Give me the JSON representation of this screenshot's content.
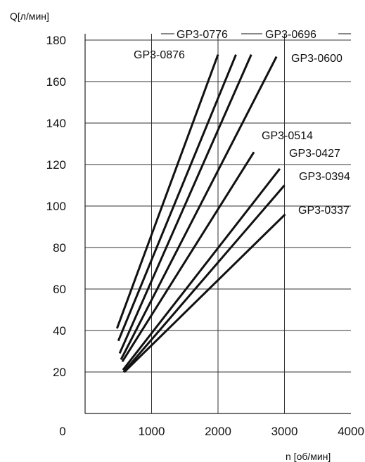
{
  "chart_data": {
    "type": "line",
    "xlabel": "n [об/мин]",
    "ylabel": "Q[л/мин]",
    "xlim": [
      0,
      4000
    ],
    "ylim": [
      0,
      190
    ],
    "grid": true,
    "x_ticks": [
      "0",
      "1000",
      "2000",
      "3000",
      "4000"
    ],
    "y_ticks": [
      "20",
      "40",
      "60",
      "80",
      "100",
      "120",
      "140",
      "160",
      "180"
    ],
    "series": [
      {
        "name": "GP3-0876",
        "x": [
          480,
          2000
        ],
        "y": [
          41,
          173
        ]
      },
      {
        "name": "GP3-0776",
        "x": [
          500,
          2270
        ],
        "y": [
          35,
          173
        ]
      },
      {
        "name": "GP3-0696",
        "x": [
          520,
          2500
        ],
        "y": [
          29,
          173
        ]
      },
      {
        "name": "GP3-0600",
        "x": [
          540,
          2880
        ],
        "y": [
          26,
          172
        ]
      },
      {
        "name": "GP3-0514",
        "x": [
          560,
          2540
        ],
        "y": [
          25,
          126
        ]
      },
      {
        "name": "GP3-0427",
        "x": [
          570,
          2930
        ],
        "y": [
          21,
          118
        ]
      },
      {
        "name": "GP3-0394",
        "x": [
          580,
          3000
        ],
        "y": [
          20,
          110
        ]
      },
      {
        "name": "GP3-0337",
        "x": [
          590,
          3010
        ],
        "y": [
          20,
          96
        ]
      }
    ]
  }
}
